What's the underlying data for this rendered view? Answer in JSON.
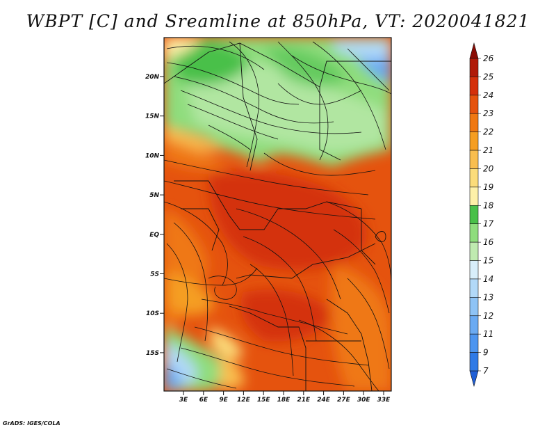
{
  "title": "WBPT [C] and Sreamline at 850hPa, VT: 2020041821",
  "credit": "GrADS: IGES/COLA",
  "map": {
    "lat_labels": [
      "20N",
      "15N",
      "10N",
      "5N",
      "EQ",
      "5S",
      "10S",
      "15S"
    ],
    "lon_labels": [
      "3E",
      "6E",
      "9E",
      "12E",
      "15E",
      "18E",
      "21E",
      "24E",
      "27E",
      "30E",
      "33E"
    ]
  },
  "colorbar": {
    "levels": [
      "7",
      "9",
      "11",
      "12",
      "13",
      "14",
      "15",
      "16",
      "17",
      "18",
      "19",
      "20",
      "21",
      "22",
      "23",
      "24",
      "25",
      "26"
    ],
    "colors": [
      "#1f5fd6",
      "#2f7ae6",
      "#4d95ef",
      "#6aaaf2",
      "#8ec3f5",
      "#b2d9f8",
      "#d8eefa",
      "#bfeab0",
      "#8fdd7d",
      "#49c049",
      "#fdf0a8",
      "#fbdc7a",
      "#f9be4f",
      "#f59e22",
      "#ef7812",
      "#e5530e",
      "#d4300b",
      "#b01a08",
      "#8a0c04"
    ]
  }
}
